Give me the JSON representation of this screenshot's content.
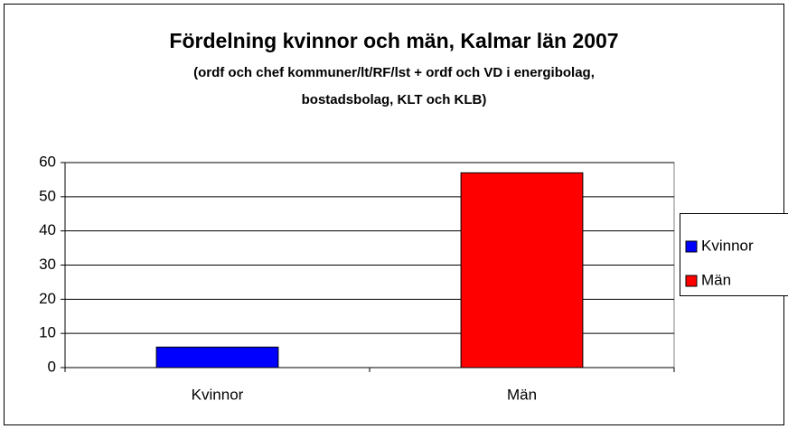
{
  "chart_data": {
    "type": "bar",
    "title": "Fördelning kvinnor och män, Kalmar län 2007",
    "subtitle": [
      "(ordf och chef kommuner/lt/RF/lst + ordf och VD i energibolag,",
      "bostadsbolag, KLT och KLB)"
    ],
    "categories": [
      "Kvinnor",
      "Män"
    ],
    "values": [
      6,
      57
    ],
    "colors": [
      "#0000ff",
      "#ff0000"
    ],
    "ylim": [
      0,
      60
    ],
    "yticks": [
      0,
      10,
      20,
      30,
      40,
      50,
      60
    ],
    "grid": true,
    "legend": "right"
  }
}
